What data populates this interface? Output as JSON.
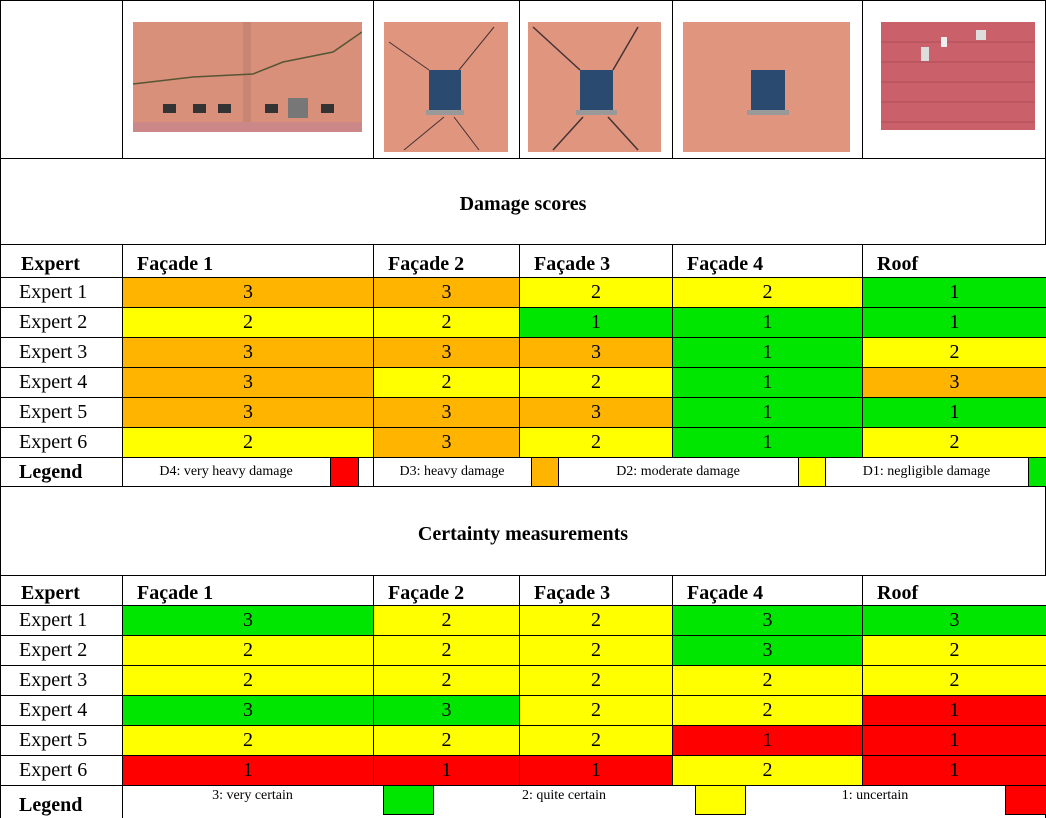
{
  "sections": [
    {
      "title": "Damage scores",
      "header": [
        "Expert",
        "Façade 1",
        "Façade 2",
        "Façade 3",
        "Façade 4",
        "Roof"
      ],
      "rows": [
        {
          "label": "Expert 1",
          "scores": [
            3,
            3,
            2,
            2,
            1
          ]
        },
        {
          "label": "Expert 2",
          "scores": [
            2,
            2,
            1,
            1,
            1
          ]
        },
        {
          "label": "Expert 3",
          "scores": [
            3,
            3,
            3,
            1,
            2
          ]
        },
        {
          "label": "Expert 4",
          "scores": [
            3,
            2,
            2,
            1,
            3
          ]
        },
        {
          "label": "Expert 5",
          "scores": [
            3,
            3,
            3,
            1,
            1
          ]
        },
        {
          "label": "Expert 6",
          "scores": [
            2,
            3,
            2,
            1,
            2
          ]
        }
      ],
      "score_colors": {
        "1": "#00e600",
        "2": "#ffff00",
        "3": "#ffb400"
      },
      "legend": {
        "label": "Legend",
        "items": [
          {
            "text": "D4: very heavy damage",
            "color": "#ff0000"
          },
          {
            "text": "D3: heavy damage",
            "color": "#ffb400"
          },
          {
            "text": "D2: moderate damage",
            "color": "#ffff00"
          },
          {
            "text": "D1: negligible damage",
            "color": "#00e600"
          }
        ]
      }
    },
    {
      "title": "Certainty measurements",
      "header": [
        "Expert",
        "Façade 1",
        "Façade 2",
        "Façade 3",
        "Façade 4",
        "Roof"
      ],
      "rows": [
        {
          "label": "Expert 1",
          "scores": [
            3,
            2,
            2,
            3,
            3
          ]
        },
        {
          "label": "Expert 2",
          "scores": [
            2,
            2,
            2,
            3,
            2
          ]
        },
        {
          "label": "Expert 3",
          "scores": [
            2,
            2,
            2,
            2,
            2
          ]
        },
        {
          "label": "Expert 4",
          "scores": [
            3,
            3,
            2,
            2,
            1
          ]
        },
        {
          "label": "Expert 5",
          "scores": [
            2,
            2,
            2,
            1,
            1
          ]
        },
        {
          "label": "Expert 6",
          "scores": [
            1,
            1,
            1,
            2,
            1
          ]
        }
      ],
      "score_colors": {
        "1": "#ff0000",
        "2": "#ffff00",
        "3": "#00e600"
      },
      "legend": {
        "label": "Legend",
        "items": [
          {
            "text": "3: very certain",
            "color": "#00e600"
          },
          {
            "text": "2: quite certain",
            "color": "#ffff00"
          },
          {
            "text": "1: uncertain",
            "color": "#ff0000"
          }
        ]
      }
    }
  ]
}
